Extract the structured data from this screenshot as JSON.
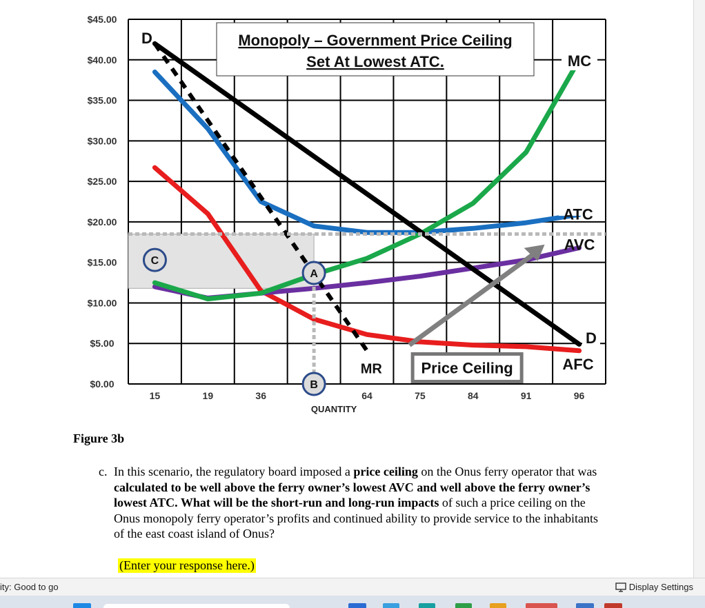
{
  "chart_data": {
    "type": "line",
    "title": "Monopoly – Government Price Ceiling Set At Lowest ATC.",
    "title_lines": [
      "Monopoly – Government Price Ceiling",
      "Set At Lowest ATC."
    ],
    "xlabel": "QUANTITY",
    "x_ticks": [
      "15",
      "19",
      "36",
      "",
      "64",
      "75",
      "84",
      "91",
      "96"
    ],
    "y_ticks": [
      "$0.00",
      "$5.00",
      "$10.00",
      "$15.00",
      "$20.00",
      "$25.00",
      "$30.00",
      "$35.00",
      "$40.00",
      "$45.00"
    ],
    "ylim": [
      0,
      45
    ],
    "grid": true,
    "series": [
      {
        "name": "D",
        "color": "#000000",
        "style": "solid",
        "x": [
          0.5,
          8.5
        ],
        "y": [
          42,
          4.9
        ]
      },
      {
        "name": "MR",
        "color": "#000000",
        "style": "dashed",
        "x": [
          0.5,
          4.5
        ],
        "y": [
          42,
          4.1
        ]
      },
      {
        "name": "ATC",
        "color": "#1a6fc0",
        "style": "solid",
        "x": [
          0.5,
          1.5,
          2.5,
          3.5,
          4.5,
          5.5,
          6.5,
          7.5,
          8.5
        ],
        "y": [
          38.5,
          31.5,
          22.5,
          19.5,
          18.7,
          18.7,
          19.2,
          19.9,
          20.9
        ]
      },
      {
        "name": "MC",
        "color": "#1aa84a",
        "style": "solid",
        "x": [
          0.5,
          1.5,
          2.5,
          3.5,
          4.5,
          5.5,
          6.5,
          7.5,
          8.5
        ],
        "y": [
          12.5,
          10.5,
          11.2,
          13.5,
          15.5,
          18.5,
          22.3,
          28.6,
          40
        ]
      },
      {
        "name": "AVC",
        "color": "#6a2fa0",
        "style": "solid",
        "x": [
          0.5,
          1.5,
          2.5,
          3.5,
          4.5,
          5.5,
          6.5,
          7.5,
          8.5
        ],
        "y": [
          12,
          10.6,
          11.2,
          11.8,
          12.5,
          13.3,
          14.3,
          15.3,
          16.8
        ]
      },
      {
        "name": "AFC",
        "color": "#e81d1d",
        "style": "solid",
        "x": [
          0.5,
          1.5,
          2.5,
          3.5,
          4.5,
          5.5,
          6.5,
          7.5,
          8.5
        ],
        "y": [
          26.7,
          21,
          11.5,
          8,
          6.1,
          5.2,
          4.8,
          4.6,
          4.1
        ]
      }
    ],
    "price_ceiling_y": 18.5,
    "curve_labels": {
      "D_top": "D",
      "D_bottom": "D",
      "MC": "MC",
      "ATC": "ATC",
      "AVC": "AVC",
      "AFC": "AFC",
      "MR": "MR"
    },
    "markers": [
      {
        "label": "A",
        "x": 3.5,
        "y": 13.7
      },
      {
        "label": "B",
        "x": 3.5,
        "y": 0
      },
      {
        "label": "C",
        "x": 0.5,
        "y": 15.3
      }
    ],
    "callout": "Price Ceiling",
    "colors": {
      "gray_dash": "#b9b9b9",
      "arrow": "#808080",
      "shade": "#e3e3e3",
      "marker_ring": "#2c4b8a",
      "marker_fill": "#dcdcdc"
    }
  },
  "document": {
    "figure_caption": "Figure 3b",
    "question_label": "c.",
    "question_runs": [
      {
        "text": "In this scenario, the regulatory board imposed a ",
        "bold": false
      },
      {
        "text": "price ceiling",
        "bold": true
      },
      {
        "text": " on the Onus ferry operator that was ",
        "bold": false
      },
      {
        "text": "calculated to be well above the ferry owner’s lowest AVC and well above the ferry owner’s lowest ATC. What will be the short-run and long-run impacts",
        "bold": true
      },
      {
        "text": " of such a price ceiling on the Onus monopoly ferry operator’s profits and continued ability to provide service to the inhabitants of the east coast island of Onus?",
        "bold": false
      }
    ],
    "response_placeholder": "(Enter your response here.)"
  },
  "statusbar": {
    "accessibility": "ity: Good to go",
    "display_settings": "Display Settings"
  }
}
